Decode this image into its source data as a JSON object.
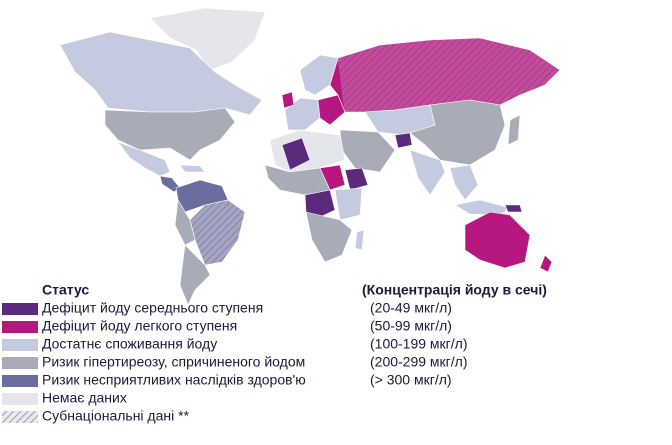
{
  "legend": {
    "title": "Статус",
    "concentration_title": "(Концентрація йоду в сечі)",
    "items": [
      {
        "label": "Дефіцит йоду середнього ступеня",
        "range": "(20-49 мкг/л)",
        "color": "#5b2a7c"
      },
      {
        "label": "Дефіцит йоду легкого ступеня",
        "range": "(50-99 мкг/л)",
        "color": "#b5177f"
      },
      {
        "label": "Достатнє споживання йоду",
        "range": "(100-199 мкг/л)",
        "color": "#c4cae0"
      },
      {
        "label": "Ризик гіпертиреозу, спричиненого йодом",
        "range": "(200-299 мкг/л)",
        "color": "#a8acb8"
      },
      {
        "label": "Ризик несприятливих наслідків здоров'ю",
        "range": "(> 300 мкг/л)",
        "color": "#6a6e9e"
      },
      {
        "label": "Немає даних",
        "color": "#e4e6ec"
      },
      {
        "label": "Субнаціональні дані **",
        "hatched": true
      }
    ]
  }
}
